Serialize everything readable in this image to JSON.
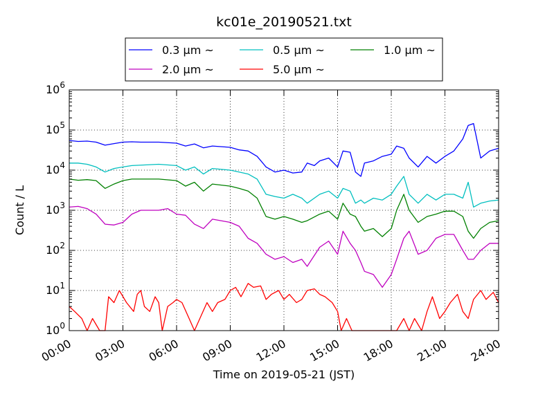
{
  "chart_data": {
    "type": "line",
    "title": "kc01e_20190521.txt",
    "xlabel": "Time on 2019-05-21 (JST)",
    "ylabel": "Count / L",
    "x_ticks": [
      "00:00",
      "03:00",
      "06:00",
      "09:00",
      "12:00",
      "15:00",
      "18:00",
      "21:00",
      "24:00"
    ],
    "xlim_hours": [
      0,
      24
    ],
    "y_scale": "log",
    "ylim": [
      1,
      1000000
    ],
    "y_ticks": [
      {
        "base": "10",
        "exp": "0"
      },
      {
        "base": "10",
        "exp": "1"
      },
      {
        "base": "10",
        "exp": "2"
      },
      {
        "base": "10",
        "exp": "3"
      },
      {
        "base": "10",
        "exp": "4"
      },
      {
        "base": "10",
        "exp": "5"
      },
      {
        "base": "10",
        "exp": "6"
      }
    ],
    "grid": true,
    "legend_position": "top",
    "series": [
      {
        "name": "0.3 μm ~",
        "color": "#0000ff",
        "points": [
          [
            0,
            55000
          ],
          [
            0.5,
            52000
          ],
          [
            1,
            53000
          ],
          [
            1.5,
            50000
          ],
          [
            2,
            42000
          ],
          [
            2.5,
            46000
          ],
          [
            3,
            50000
          ],
          [
            3.5,
            51000
          ],
          [
            4,
            50000
          ],
          [
            5,
            50000
          ],
          [
            6,
            47000
          ],
          [
            6.5,
            40000
          ],
          [
            7,
            45000
          ],
          [
            7.5,
            36000
          ],
          [
            8,
            40000
          ],
          [
            9,
            37000
          ],
          [
            9.5,
            32000
          ],
          [
            10,
            30000
          ],
          [
            10.5,
            22000
          ],
          [
            11,
            12000
          ],
          [
            11.5,
            9000
          ],
          [
            12,
            10000
          ],
          [
            12.5,
            8500
          ],
          [
            13,
            9000
          ],
          [
            13.3,
            15000
          ],
          [
            13.7,
            13000
          ],
          [
            14,
            17000
          ],
          [
            14.5,
            20000
          ],
          [
            15,
            12000
          ],
          [
            15.3,
            30000
          ],
          [
            15.7,
            28000
          ],
          [
            16,
            9000
          ],
          [
            16.3,
            7000
          ],
          [
            16.5,
            15000
          ],
          [
            17,
            17000
          ],
          [
            17.5,
            22000
          ],
          [
            18,
            25000
          ],
          [
            18.3,
            40000
          ],
          [
            18.7,
            35000
          ],
          [
            19,
            20000
          ],
          [
            19.5,
            12000
          ],
          [
            20,
            22000
          ],
          [
            20.5,
            15000
          ],
          [
            21,
            22000
          ],
          [
            21.5,
            30000
          ],
          [
            22,
            60000
          ],
          [
            22.3,
            130000
          ],
          [
            22.6,
            145000
          ],
          [
            23,
            20000
          ],
          [
            23.5,
            30000
          ],
          [
            24,
            35000
          ]
        ]
      },
      {
        "name": "0.5 μm ~",
        "color": "#00bfbf",
        "points": [
          [
            0,
            15000
          ],
          [
            0.5,
            15000
          ],
          [
            1,
            14000
          ],
          [
            1.5,
            12000
          ],
          [
            2,
            9000
          ],
          [
            2.5,
            11000
          ],
          [
            3,
            12000
          ],
          [
            3.5,
            13000
          ],
          [
            5,
            14000
          ],
          [
            6,
            13000
          ],
          [
            6.5,
            10000
          ],
          [
            7,
            12000
          ],
          [
            7.5,
            8000
          ],
          [
            8,
            11000
          ],
          [
            9,
            10000
          ],
          [
            9.5,
            9000
          ],
          [
            10,
            8000
          ],
          [
            10.5,
            6000
          ],
          [
            11,
            2500
          ],
          [
            11.5,
            2200
          ],
          [
            12,
            2000
          ],
          [
            12.5,
            2500
          ],
          [
            13,
            2000
          ],
          [
            13.3,
            1500
          ],
          [
            14,
            2500
          ],
          [
            14.5,
            3000
          ],
          [
            15,
            2000
          ],
          [
            15.3,
            3500
          ],
          [
            15.7,
            3000
          ],
          [
            16,
            1500
          ],
          [
            16.3,
            1800
          ],
          [
            16.5,
            1500
          ],
          [
            17,
            2000
          ],
          [
            17.5,
            1800
          ],
          [
            18,
            2500
          ],
          [
            18.3,
            4000
          ],
          [
            18.7,
            7000
          ],
          [
            19,
            2500
          ],
          [
            19.5,
            1500
          ],
          [
            20,
            2500
          ],
          [
            20.5,
            1800
          ],
          [
            21,
            2500
          ],
          [
            21.5,
            2500
          ],
          [
            22,
            2000
          ],
          [
            22.3,
            5000
          ],
          [
            22.6,
            1200
          ],
          [
            23,
            1500
          ],
          [
            23.5,
            1700
          ],
          [
            24,
            1800
          ]
        ]
      },
      {
        "name": "1.0 μm ~",
        "color": "#008000",
        "points": [
          [
            0,
            6000
          ],
          [
            0.5,
            5600
          ],
          [
            1,
            5800
          ],
          [
            1.5,
            5500
          ],
          [
            2,
            3500
          ],
          [
            2.5,
            4500
          ],
          [
            3,
            5500
          ],
          [
            3.5,
            6000
          ],
          [
            5,
            6000
          ],
          [
            6,
            5500
          ],
          [
            6.5,
            4000
          ],
          [
            7,
            5000
          ],
          [
            7.5,
            3000
          ],
          [
            8,
            4500
          ],
          [
            9,
            4000
          ],
          [
            9.5,
            3500
          ],
          [
            10,
            3000
          ],
          [
            10.5,
            2000
          ],
          [
            11,
            700
          ],
          [
            11.5,
            600
          ],
          [
            12,
            700
          ],
          [
            12.5,
            600
          ],
          [
            13,
            500
          ],
          [
            13.3,
            550
          ],
          [
            14,
            800
          ],
          [
            14.5,
            950
          ],
          [
            15,
            600
          ],
          [
            15.3,
            1500
          ],
          [
            15.7,
            800
          ],
          [
            16,
            700
          ],
          [
            16.3,
            400
          ],
          [
            16.5,
            300
          ],
          [
            17,
            350
          ],
          [
            17.5,
            220
          ],
          [
            18,
            350
          ],
          [
            18.3,
            1000
          ],
          [
            18.7,
            2500
          ],
          [
            19,
            1000
          ],
          [
            19.5,
            500
          ],
          [
            20,
            700
          ],
          [
            20.5,
            800
          ],
          [
            21,
            950
          ],
          [
            21.5,
            950
          ],
          [
            22,
            700
          ],
          [
            22.3,
            300
          ],
          [
            22.6,
            200
          ],
          [
            23,
            350
          ],
          [
            23.5,
            500
          ],
          [
            24,
            550
          ]
        ]
      },
      {
        "name": "2.0 μm ~",
        "color": "#bf00bf",
        "points": [
          [
            0,
            1200
          ],
          [
            0.5,
            1250
          ],
          [
            1,
            1100
          ],
          [
            1.5,
            800
          ],
          [
            2,
            450
          ],
          [
            2.5,
            430
          ],
          [
            3,
            500
          ],
          [
            3.5,
            800
          ],
          [
            4,
            1000
          ],
          [
            5,
            1000
          ],
          [
            5.5,
            1100
          ],
          [
            6,
            800
          ],
          [
            6.5,
            750
          ],
          [
            7,
            450
          ],
          [
            7.5,
            350
          ],
          [
            8,
            600
          ],
          [
            9,
            500
          ],
          [
            9.5,
            400
          ],
          [
            10,
            200
          ],
          [
            10.5,
            150
          ],
          [
            11,
            80
          ],
          [
            11.5,
            60
          ],
          [
            12,
            70
          ],
          [
            12.5,
            50
          ],
          [
            13,
            60
          ],
          [
            13.3,
            40
          ],
          [
            14,
            120
          ],
          [
            14.5,
            170
          ],
          [
            15,
            80
          ],
          [
            15.3,
            300
          ],
          [
            15.7,
            150
          ],
          [
            16,
            100
          ],
          [
            16.3,
            50
          ],
          [
            16.5,
            30
          ],
          [
            17,
            25
          ],
          [
            17.5,
            12
          ],
          [
            18,
            25
          ],
          [
            18.3,
            60
          ],
          [
            18.7,
            200
          ],
          [
            19,
            300
          ],
          [
            19.5,
            80
          ],
          [
            20,
            100
          ],
          [
            20.5,
            200
          ],
          [
            21,
            250
          ],
          [
            21.5,
            250
          ],
          [
            22,
            100
          ],
          [
            22.3,
            60
          ],
          [
            22.6,
            60
          ],
          [
            23,
            100
          ],
          [
            23.5,
            150
          ],
          [
            24,
            150
          ]
        ]
      },
      {
        "name": "5.0 μm ~",
        "color": "#ff0000",
        "points": [
          [
            0,
            4
          ],
          [
            0.3,
            3
          ],
          [
            0.7,
            2
          ],
          [
            1,
            1
          ],
          [
            1.3,
            2
          ],
          [
            1.7,
            1
          ],
          [
            2,
            1
          ],
          [
            2.2,
            7
          ],
          [
            2.5,
            5
          ],
          [
            2.8,
            10
          ],
          [
            3.2,
            5
          ],
          [
            3.6,
            3
          ],
          [
            3.8,
            8
          ],
          [
            4,
            10
          ],
          [
            4.2,
            4
          ],
          [
            4.5,
            3
          ],
          [
            4.8,
            7
          ],
          [
            5,
            5
          ],
          [
            5.2,
            1
          ],
          [
            5.5,
            4
          ],
          [
            5.8,
            5
          ],
          [
            6,
            6
          ],
          [
            6.3,
            5
          ],
          [
            6.7,
            2
          ],
          [
            7,
            1
          ],
          [
            7.3,
            2
          ],
          [
            7.7,
            5
          ],
          [
            8,
            3
          ],
          [
            8.3,
            5
          ],
          [
            8.7,
            6
          ],
          [
            9,
            10
          ],
          [
            9.3,
            12
          ],
          [
            9.6,
            7
          ],
          [
            10,
            15
          ],
          [
            10.3,
            12
          ],
          [
            10.7,
            13
          ],
          [
            11,
            6
          ],
          [
            11.3,
            8
          ],
          [
            11.7,
            10
          ],
          [
            12,
            6
          ],
          [
            12.3,
            8
          ],
          [
            12.7,
            5
          ],
          [
            13,
            6
          ],
          [
            13.3,
            10
          ],
          [
            13.7,
            11
          ],
          [
            14,
            8
          ],
          [
            14.3,
            7
          ],
          [
            14.7,
            5
          ],
          [
            15,
            3
          ],
          [
            15.2,
            1
          ],
          [
            15.5,
            2
          ],
          [
            15.8,
            1
          ],
          [
            16,
            1
          ],
          [
            16.3,
            1
          ],
          [
            16.7,
            1
          ],
          [
            17,
            1
          ],
          [
            17.3,
            1
          ],
          [
            17.7,
            1
          ],
          [
            18,
            1
          ],
          [
            18.3,
            1
          ],
          [
            18.7,
            2
          ],
          [
            19,
            1
          ],
          [
            19.3,
            2
          ],
          [
            19.7,
            1
          ],
          [
            20,
            3
          ],
          [
            20.3,
            7
          ],
          [
            20.7,
            2
          ],
          [
            21,
            3
          ],
          [
            21.3,
            5
          ],
          [
            21.7,
            8
          ],
          [
            22,
            3
          ],
          [
            22.3,
            2
          ],
          [
            22.6,
            6
          ],
          [
            23,
            10
          ],
          [
            23.3,
            6
          ],
          [
            23.7,
            9
          ],
          [
            24,
            5
          ]
        ]
      }
    ]
  }
}
